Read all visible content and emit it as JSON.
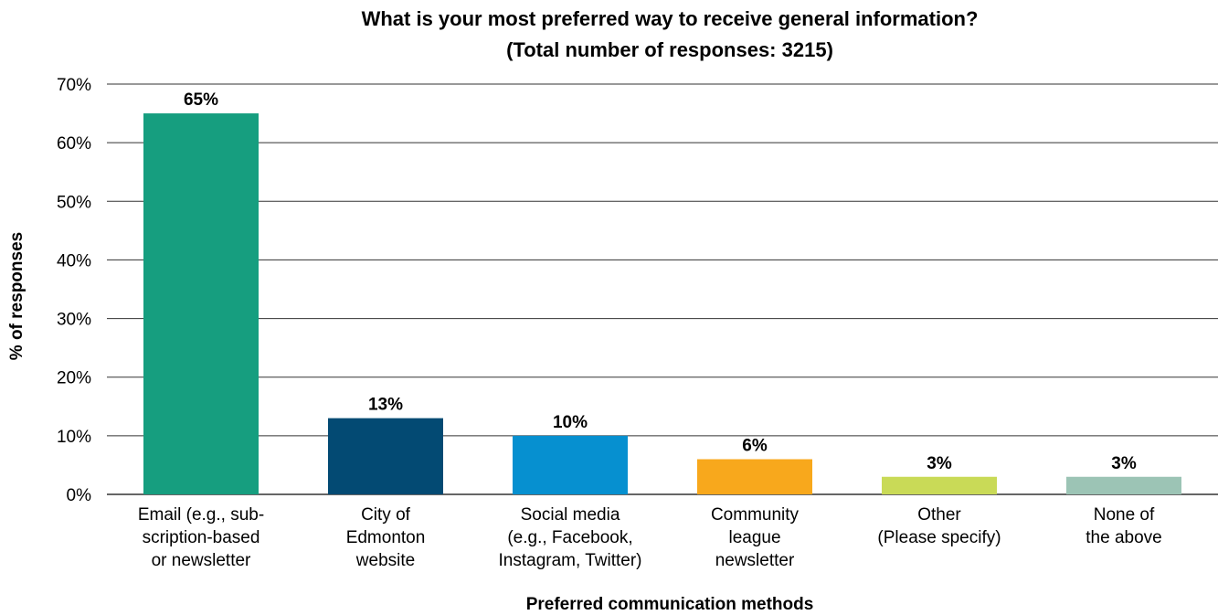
{
  "chart_data": {
    "type": "bar",
    "title": [
      "What is your most preferred way to receive general information?",
      "(Total number of responses: 3215)"
    ],
    "xlabel": "Preferred communication methods",
    "ylabel": "% of responses",
    "ylim": [
      0,
      70
    ],
    "yticks": [
      "0%",
      "10%",
      "20%",
      "30%",
      "40%",
      "50%",
      "60%",
      "70%"
    ],
    "grid": true,
    "categories": [
      [
        "Email (e.g., sub-",
        "scription-based",
        "or newsletter"
      ],
      [
        "City of",
        "Edmonton",
        "website"
      ],
      [
        "Social media",
        "(e.g., Facebook,",
        "Instagram, Twitter)"
      ],
      [
        "Community",
        "league",
        "newsletter"
      ],
      [
        "Other",
        "(Please specify)"
      ],
      [
        "None of",
        "the above"
      ]
    ],
    "values": [
      65,
      13,
      10,
      6,
      3,
      3
    ],
    "value_labels": [
      "65%",
      "13%",
      "10%",
      "6%",
      "3%",
      "3%"
    ],
    "colors": [
      "#169e7f",
      "#034a73",
      "#0690d0",
      "#f8a81c",
      "#c9da57",
      "#9cc4b5"
    ]
  }
}
